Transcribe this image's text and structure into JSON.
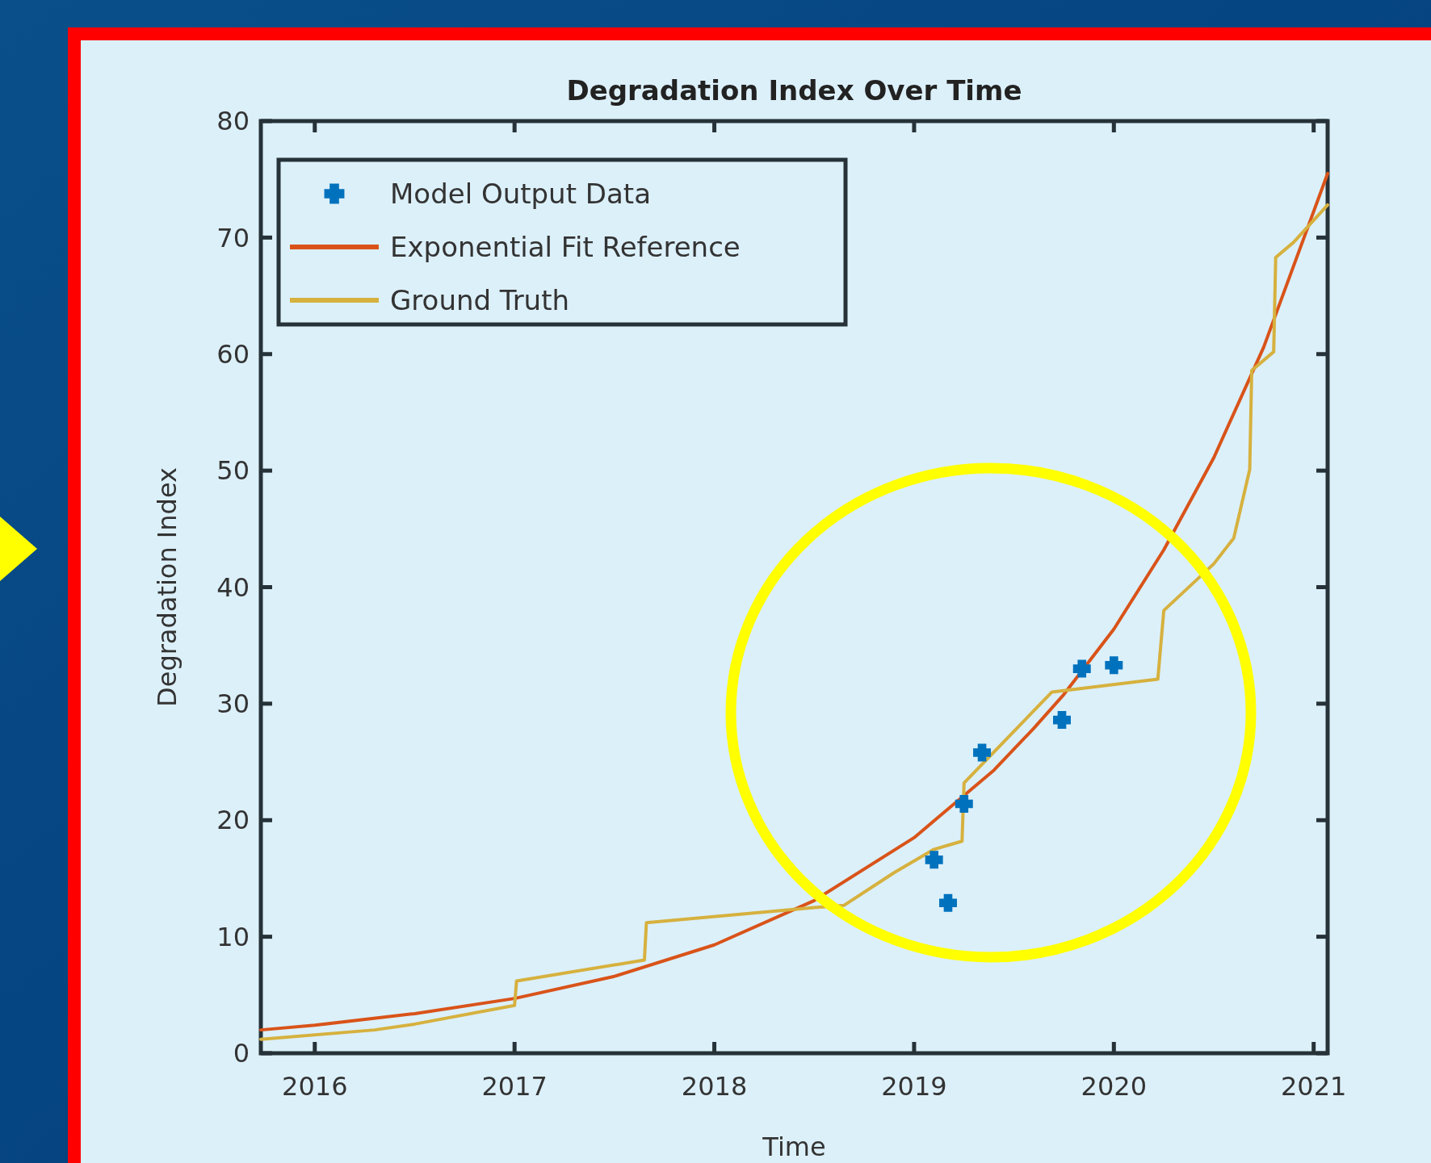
{
  "chart_data": {
    "type": "line",
    "title": "Degradation Index Over Time",
    "xlabel": "Time",
    "ylabel": "Degradation Index",
    "xlim": [
      2015.73,
      2021.07
    ],
    "xticks": [
      2016,
      2017,
      2018,
      2019,
      2020,
      2021
    ],
    "ylim": [
      0,
      80
    ],
    "yticks": [
      0,
      10,
      20,
      30,
      40,
      50,
      60,
      70,
      80
    ],
    "legend": "top left",
    "grid": false,
    "series": [
      {
        "name": "Model Output Data",
        "type": "scatter",
        "marker": "cross",
        "color": "#0072bd",
        "x": [
          2019.1,
          2019.17,
          2019.25,
          2019.34,
          2019.74,
          2019.84,
          2020.0
        ],
        "values": [
          16.6,
          12.9,
          21.4,
          25.8,
          28.6,
          33.0,
          33.3
        ]
      },
      {
        "name": "Exponential Fit Reference",
        "line_style": "solid",
        "color": "#d95319",
        "x": [
          2015.73,
          2016,
          2016.5,
          2017,
          2017.5,
          2018,
          2018.5,
          2019,
          2019.4,
          2019.6,
          2019.75,
          2020,
          2020.25,
          2020.5,
          2020.75,
          2021.07
        ],
        "values": [
          2.0,
          2.4,
          3.4,
          4.7,
          6.6,
          9.3,
          13.1,
          18.5,
          24.3,
          27.9,
          30.8,
          36.4,
          43.2,
          51.1,
          60.6,
          75.5
        ]
      },
      {
        "name": "Ground Truth",
        "line_style": "solid",
        "color": "#d6b13e",
        "x": [
          2015.73,
          2016.3,
          2016.5,
          2017,
          2017.01,
          2017.65,
          2017.66,
          2018.5,
          2018.65,
          2018.9,
          2019.1,
          2019.24,
          2019.25,
          2019.69,
          2020.22,
          2020.25,
          2020.5,
          2020.6,
          2020.68,
          2020.69,
          2020.8,
          2020.81,
          2020.9,
          2021.07
        ],
        "values": [
          1.2,
          2.0,
          2.5,
          4.1,
          6.2,
          8.0,
          11.2,
          12.5,
          12.7,
          15.5,
          17.5,
          18.2,
          23.2,
          31.0,
          32.1,
          38.0,
          42.0,
          44.2,
          50.1,
          58.6,
          60.2,
          68.3,
          69.6,
          72.8
        ]
      }
    ]
  }
}
